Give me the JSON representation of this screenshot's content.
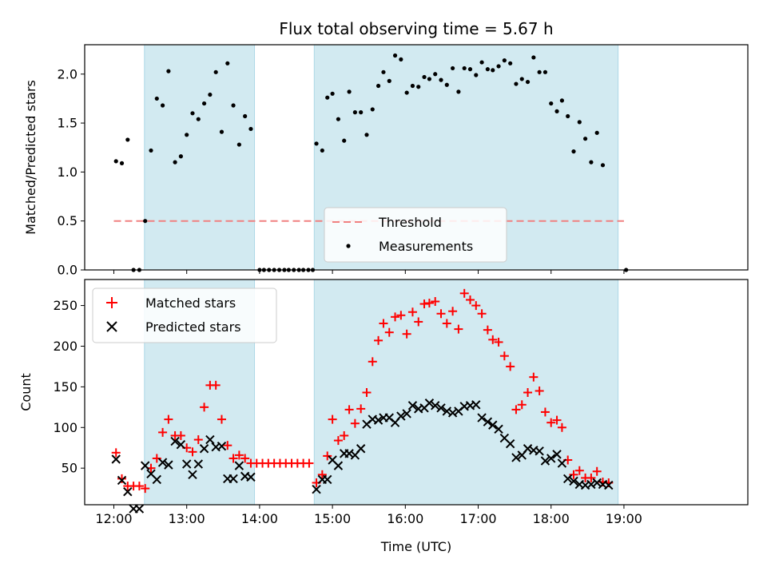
{
  "chart_data": [
    {
      "type": "scatter",
      "title": "Flux total observing time = 5.67 h",
      "xlabel": "",
      "ylabel": "Matched/Predicted stars",
      "xlim": [
        11.6,
        20.7
      ],
      "ylim": [
        0,
        2.3
      ],
      "yticks": [
        "0.0",
        "0.5",
        "1.0",
        "1.5",
        "2.0"
      ],
      "shaded_spans": [
        [
          12.42,
          13.93
        ],
        [
          14.75,
          18.92
        ]
      ],
      "span_color": "#add8e6",
      "legend": {
        "placement": "lower-center",
        "entries": [
          "Threshold",
          "Measurements"
        ]
      },
      "threshold": {
        "name": "Threshold",
        "value": 0.5,
        "x_range": [
          12.0,
          19.0
        ],
        "color": "#f08080"
      },
      "series": [
        {
          "name": "Measurements",
          "color": "#000000",
          "points": [
            [
              12.03,
              1.11
            ],
            [
              12.11,
              1.09
            ],
            [
              12.19,
              1.33
            ],
            [
              12.27,
              0
            ],
            [
              12.35,
              0
            ],
            [
              12.43,
              0.5
            ],
            [
              12.51,
              1.22
            ],
            [
              12.59,
              1.75
            ],
            [
              12.67,
              1.68
            ],
            [
              12.75,
              2.03
            ],
            [
              12.84,
              1.1
            ],
            [
              12.92,
              1.16
            ],
            [
              13.0,
              1.38
            ],
            [
              13.08,
              1.6
            ],
            [
              13.16,
              1.54
            ],
            [
              13.24,
              1.7
            ],
            [
              13.32,
              1.79
            ],
            [
              13.4,
              2.02
            ],
            [
              13.48,
              1.41
            ],
            [
              13.56,
              2.11
            ],
            [
              13.64,
              1.68
            ],
            [
              13.72,
              1.28
            ],
            [
              13.8,
              1.57
            ],
            [
              13.88,
              1.44
            ],
            [
              14.0,
              0
            ],
            [
              14.06,
              0
            ],
            [
              14.13,
              0
            ],
            [
              14.2,
              0
            ],
            [
              14.27,
              0
            ],
            [
              14.34,
              0
            ],
            [
              14.4,
              0
            ],
            [
              14.47,
              0
            ],
            [
              14.54,
              0
            ],
            [
              14.6,
              0
            ],
            [
              14.67,
              0
            ],
            [
              14.73,
              0
            ],
            [
              14.78,
              1.29
            ],
            [
              14.86,
              1.22
            ],
            [
              14.93,
              1.76
            ],
            [
              15.0,
              1.8
            ],
            [
              15.08,
              1.54
            ],
            [
              15.16,
              1.32
            ],
            [
              15.23,
              1.82
            ],
            [
              15.31,
              1.61
            ],
            [
              15.39,
              1.61
            ],
            [
              15.47,
              1.38
            ],
            [
              15.55,
              1.64
            ],
            [
              15.63,
              1.88
            ],
            [
              15.7,
              2.02
            ],
            [
              15.78,
              1.93
            ],
            [
              15.86,
              2.19
            ],
            [
              15.94,
              2.15
            ],
            [
              16.02,
              1.81
            ],
            [
              16.1,
              1.88
            ],
            [
              16.18,
              1.87
            ],
            [
              16.26,
              1.97
            ],
            [
              16.33,
              1.95
            ],
            [
              16.41,
              2.0
            ],
            [
              16.49,
              1.94
            ],
            [
              16.57,
              1.89
            ],
            [
              16.65,
              2.06
            ],
            [
              16.73,
              1.82
            ],
            [
              16.81,
              2.06
            ],
            [
              16.89,
              2.05
            ],
            [
              16.97,
              1.99
            ],
            [
              17.05,
              2.12
            ],
            [
              17.13,
              2.05
            ],
            [
              17.2,
              2.04
            ],
            [
              17.28,
              2.08
            ],
            [
              17.36,
              2.14
            ],
            [
              17.44,
              2.11
            ],
            [
              17.52,
              1.9
            ],
            [
              17.6,
              1.95
            ],
            [
              17.68,
              1.92
            ],
            [
              17.76,
              2.17
            ],
            [
              17.84,
              2.02
            ],
            [
              17.92,
              2.02
            ],
            [
              18.0,
              1.7
            ],
            [
              18.08,
              1.62
            ],
            [
              18.15,
              1.73
            ],
            [
              18.23,
              1.57
            ],
            [
              18.31,
              1.21
            ],
            [
              18.39,
              1.51
            ],
            [
              18.47,
              1.34
            ],
            [
              18.55,
              1.1
            ],
            [
              18.63,
              1.4
            ],
            [
              18.71,
              1.07
            ],
            [
              19.03,
              0
            ]
          ]
        }
      ]
    },
    {
      "type": "scatter",
      "title": "",
      "xlabel": "Time (UTC)",
      "ylabel": "Count",
      "xlim": [
        11.6,
        20.7
      ],
      "ylim": [
        5,
        282
      ],
      "xticks": [
        "12:00",
        "13:00",
        "14:00",
        "15:00",
        "16:00",
        "17:00",
        "18:00",
        "19:00"
      ],
      "yticks": [
        "50",
        "100",
        "150",
        "200",
        "250"
      ],
      "shaded_spans": [
        [
          12.42,
          13.93
        ],
        [
          14.75,
          18.92
        ]
      ],
      "span_color": "#add8e6",
      "legend": {
        "placement": "top-left",
        "entries": [
          "Matched stars",
          "Predicted stars"
        ]
      },
      "series": [
        {
          "name": "Matched stars",
          "marker": "plus",
          "color": "#ff0000",
          "points": [
            [
              12.03,
              69
            ],
            [
              12.11,
              37
            ],
            [
              12.19,
              28
            ],
            [
              12.27,
              28
            ],
            [
              12.35,
              28
            ],
            [
              12.43,
              25
            ],
            [
              12.51,
              50
            ],
            [
              12.59,
              62
            ],
            [
              12.67,
              94
            ],
            [
              12.75,
              110
            ],
            [
              12.84,
              90
            ],
            [
              12.92,
              90
            ],
            [
              13.0,
              75
            ],
            [
              13.08,
              70
            ],
            [
              13.16,
              85
            ],
            [
              13.24,
              125
            ],
            [
              13.32,
              152
            ],
            [
              13.4,
              152
            ],
            [
              13.48,
              110
            ],
            [
              13.56,
              78
            ],
            [
              13.64,
              62
            ],
            [
              13.72,
              66
            ],
            [
              13.8,
              62
            ],
            [
              13.88,
              56
            ],
            [
              13.96,
              56
            ],
            [
              14.04,
              56
            ],
            [
              14.12,
              56
            ],
            [
              14.2,
              56
            ],
            [
              14.28,
              56
            ],
            [
              14.36,
              56
            ],
            [
              14.44,
              56
            ],
            [
              14.52,
              56
            ],
            [
              14.6,
              56
            ],
            [
              14.68,
              56
            ],
            [
              14.78,
              32
            ],
            [
              14.86,
              42
            ],
            [
              14.93,
              65
            ],
            [
              15.0,
              110
            ],
            [
              15.08,
              84
            ],
            [
              15.16,
              90
            ],
            [
              15.23,
              122
            ],
            [
              15.31,
              105
            ],
            [
              15.39,
              123
            ],
            [
              15.47,
              143
            ],
            [
              15.55,
              181
            ],
            [
              15.63,
              207
            ],
            [
              15.7,
              228
            ],
            [
              15.78,
              217
            ],
            [
              15.86,
              236
            ],
            [
              15.94,
              238
            ],
            [
              16.02,
              215
            ],
            [
              16.1,
              242
            ],
            [
              16.18,
              230
            ],
            [
              16.26,
              252
            ],
            [
              16.33,
              253
            ],
            [
              16.41,
              255
            ],
            [
              16.49,
              240
            ],
            [
              16.57,
              228
            ],
            [
              16.65,
              243
            ],
            [
              16.73,
              221
            ],
            [
              16.81,
              265
            ],
            [
              16.89,
              257
            ],
            [
              16.97,
              250
            ],
            [
              17.05,
              240
            ],
            [
              17.13,
              220
            ],
            [
              17.2,
              208
            ],
            [
              17.28,
              205
            ],
            [
              17.36,
              188
            ],
            [
              17.44,
              175
            ],
            [
              17.52,
              122
            ],
            [
              17.6,
              128
            ],
            [
              17.68,
              143
            ],
            [
              17.76,
              162
            ],
            [
              17.84,
              145
            ],
            [
              17.92,
              119
            ],
            [
              18.0,
              106
            ],
            [
              18.08,
              109
            ],
            [
              18.15,
              100
            ],
            [
              18.23,
              60
            ],
            [
              18.31,
              42
            ],
            [
              18.39,
              47
            ],
            [
              18.47,
              38
            ],
            [
              18.55,
              38
            ],
            [
              18.63,
              46
            ],
            [
              18.71,
              33
            ],
            [
              18.79,
              32
            ]
          ]
        },
        {
          "name": "Predicted stars",
          "marker": "x",
          "color": "#000000",
          "points": [
            [
              12.03,
              61
            ],
            [
              12.11,
              35
            ],
            [
              12.19,
              21
            ],
            [
              12.27,
              0
            ],
            [
              12.35,
              0
            ],
            [
              12.43,
              53
            ],
            [
              12.51,
              43
            ],
            [
              12.59,
              36
            ],
            [
              12.67,
              57
            ],
            [
              12.75,
              54
            ],
            [
              12.84,
              83
            ],
            [
              12.92,
              79
            ],
            [
              13.0,
              55
            ],
            [
              13.08,
              42
            ],
            [
              13.16,
              55
            ],
            [
              13.24,
              74
            ],
            [
              13.32,
              85
            ],
            [
              13.4,
              76
            ],
            [
              13.48,
              77
            ],
            [
              13.56,
              37
            ],
            [
              13.64,
              37
            ],
            [
              13.72,
              53
            ],
            [
              13.8,
              40
            ],
            [
              13.88,
              39
            ],
            [
              14.78,
              24
            ],
            [
              14.86,
              36
            ],
            [
              14.93,
              36
            ],
            [
              15.0,
              60
            ],
            [
              15.08,
              53
            ],
            [
              15.16,
              68
            ],
            [
              15.23,
              68
            ],
            [
              15.31,
              66
            ],
            [
              15.39,
              74
            ],
            [
              15.47,
              104
            ],
            [
              15.55,
              110
            ],
            [
              15.63,
              109
            ],
            [
              15.7,
              112
            ],
            [
              15.78,
              112
            ],
            [
              15.86,
              106
            ],
            [
              15.94,
              114
            ],
            [
              16.02,
              117
            ],
            [
              16.1,
              127
            ],
            [
              16.18,
              123
            ],
            [
              16.26,
              124
            ],
            [
              16.33,
              130
            ],
            [
              16.41,
              127
            ],
            [
              16.49,
              124
            ],
            [
              16.57,
              120
            ],
            [
              16.65,
              118
            ],
            [
              16.73,
              120
            ],
            [
              16.81,
              126
            ],
            [
              16.89,
              127
            ],
            [
              16.97,
              128
            ],
            [
              17.05,
              112
            ],
            [
              17.13,
              107
            ],
            [
              17.2,
              103
            ],
            [
              17.28,
              98
            ],
            [
              17.36,
              87
            ],
            [
              17.44,
              80
            ],
            [
              17.52,
              63
            ],
            [
              17.6,
              66
            ],
            [
              17.68,
              74
            ],
            [
              17.76,
              72
            ],
            [
              17.84,
              71
            ],
            [
              17.92,
              59
            ],
            [
              18.0,
              62
            ],
            [
              18.08,
              67
            ],
            [
              18.15,
              56
            ],
            [
              18.23,
              37
            ],
            [
              18.31,
              34
            ],
            [
              18.39,
              30
            ],
            [
              18.47,
              29
            ],
            [
              18.55,
              30
            ],
            [
              18.63,
              32
            ],
            [
              18.71,
              30
            ],
            [
              18.79,
              29
            ]
          ]
        }
      ]
    }
  ]
}
